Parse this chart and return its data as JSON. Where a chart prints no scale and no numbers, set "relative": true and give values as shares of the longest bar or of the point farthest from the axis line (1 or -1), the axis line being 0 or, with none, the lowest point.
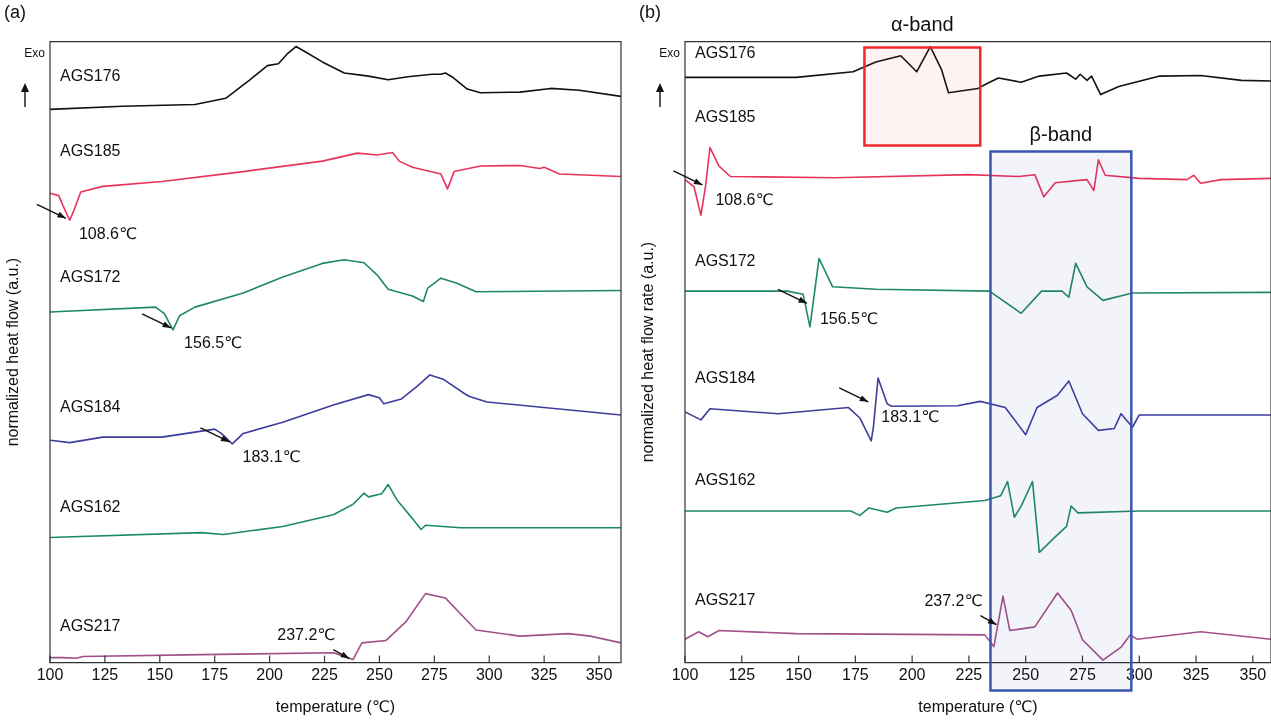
{
  "chart_data": [
    {
      "type": "line",
      "title": "(a)",
      "xlabel": "temperature (℃)",
      "ylabel": "normalized heat flow (a.u.)",
      "relative": true,
      "grid": false,
      "legend": false,
      "marker": "none",
      "xlim": [
        100,
        360
      ],
      "xticks": [
        100,
        125,
        150,
        175,
        200,
        225,
        250,
        275,
        300,
        325,
        350
      ],
      "series": [
        {
          "name": "AGS176",
          "color": "#111111",
          "x": [
            100,
            133,
            166,
            180,
            191,
            199,
            204,
            208,
            212,
            216,
            224,
            234,
            245,
            254,
            263,
            274,
            278,
            280,
            283,
            290,
            296,
            314,
            328,
            341,
            360
          ],
          "values": [
            0.898,
            0.903,
            0.906,
            0.916,
            0.946,
            0.969,
            0.972,
            0.988,
            1.0,
            0.992,
            0.975,
            0.957,
            0.952,
            0.946,
            0.951,
            0.955,
            0.955,
            0.957,
            0.951,
            0.931,
            0.925,
            0.926,
            0.932,
            0.929,
            0.919
          ]
        },
        {
          "name": "AGS185",
          "color": "#e8335a",
          "x": [
            100,
            104,
            106,
            109,
            111,
            114,
            124,
            151,
            188,
            224,
            240,
            249,
            256,
            259,
            265,
            278,
            281,
            284,
            296,
            314,
            323,
            325,
            332,
            360
          ],
          "values": [
            0.762,
            0.758,
            0.741,
            0.718,
            0.735,
            0.764,
            0.773,
            0.781,
            0.797,
            0.814,
            0.827,
            0.824,
            0.828,
            0.814,
            0.804,
            0.793,
            0.769,
            0.797,
            0.806,
            0.807,
            0.802,
            0.804,
            0.793,
            0.789
          ]
        },
        {
          "name": "AGS172",
          "color": "#1f8a5e",
          "x": [
            100,
            148,
            152,
            156,
            159,
            166,
            188,
            206,
            224,
            234,
            243,
            249,
            254,
            265,
            270,
            272,
            278,
            285,
            294,
            360
          ],
          "values": [
            0.569,
            0.577,
            0.567,
            0.54,
            0.563,
            0.577,
            0.6,
            0.626,
            0.648,
            0.654,
            0.649,
            0.629,
            0.606,
            0.595,
            0.586,
            0.608,
            0.624,
            0.616,
            0.602,
            0.604
          ]
        },
        {
          "name": "AGS184",
          "color": "#3d3d9e",
          "x": [
            100,
            109,
            124,
            151,
            175,
            178,
            183,
            188,
            206,
            229,
            245,
            250,
            252,
            260,
            267,
            273,
            279,
            289,
            291,
            299,
            360
          ],
          "values": [
            0.361,
            0.357,
            0.366,
            0.366,
            0.379,
            0.372,
            0.355,
            0.372,
            0.39,
            0.418,
            0.435,
            0.43,
            0.42,
            0.428,
            0.448,
            0.467,
            0.46,
            0.436,
            0.432,
            0.423,
            0.402
          ]
        },
        {
          "name": "AGS162",
          "color": "#1c8a6a",
          "x": [
            100,
            169,
            179,
            206,
            229,
            238,
            243,
            245,
            251,
            254,
            258,
            265,
            269,
            271,
            287,
            360
          ],
          "values": [
            0.203,
            0.211,
            0.208,
            0.221,
            0.24,
            0.257,
            0.275,
            0.269,
            0.274,
            0.289,
            0.264,
            0.234,
            0.216,
            0.223,
            0.219,
            0.219
          ]
        },
        {
          "name": "AGS217",
          "color": "#a0508a",
          "x": [
            100,
            106,
            112,
            115,
            169,
            229,
            238,
            242,
            253,
            262,
            271,
            280,
            287,
            294,
            314,
            336,
            346,
            360
          ],
          "values": [
            0.008,
            0.008,
            0.007,
            0.01,
            0.013,
            0.016,
            0.005,
            0.032,
            0.036,
            0.066,
            0.112,
            0.105,
            0.079,
            0.053,
            0.043,
            0.047,
            0.043,
            0.032
          ]
        }
      ],
      "annotations": [
        "Exo",
        {
          "text": "108.6℃",
          "x": 108.6,
          "y": 0.718
        },
        {
          "text": "156.5℃",
          "x": 156.5,
          "y": 0.54
        },
        {
          "text": "183.1℃",
          "x": 183.1,
          "y": 0.355
        },
        {
          "text": "237.2℃",
          "x": 237.2,
          "y": 0.005
        }
      ]
    },
    {
      "type": "line",
      "title": "(b)",
      "xlabel": "temperature (℃)",
      "ylabel": "normalized heat flow rate (a.u.)",
      "relative": true,
      "grid": false,
      "legend": false,
      "marker": "none",
      "xlim": [
        100,
        358
      ],
      "xticks": [
        100,
        125,
        150,
        175,
        200,
        225,
        250,
        275,
        300,
        325,
        350
      ],
      "series": [
        {
          "name": "AGS176",
          "color": "#111111",
          "x": [
            100,
            124,
            149,
            174,
            184,
            195,
            202,
            208,
            213,
            216,
            229,
            233,
            238,
            248,
            256,
            268,
            272,
            274,
            277,
            279,
            283,
            291,
            309,
            327,
            345,
            358
          ],
          "values": [
            0.95,
            0.95,
            0.95,
            0.959,
            0.975,
            0.985,
            0.959,
            1.0,
            0.962,
            0.925,
            0.932,
            0.94,
            0.949,
            0.942,
            0.952,
            0.957,
            0.947,
            0.955,
            0.945,
            0.952,
            0.922,
            0.935,
            0.952,
            0.953,
            0.945,
            0.944
          ]
        },
        {
          "name": "AGS185",
          "color": "#e8335a",
          "x": [
            100,
            104,
            107,
            109,
            111,
            115,
            120,
            166,
            225,
            247,
            254,
            258,
            263,
            277,
            280,
            282,
            285,
            300,
            321,
            324,
            327,
            336,
            358
          ],
          "values": [
            0.784,
            0.772,
            0.726,
            0.772,
            0.836,
            0.806,
            0.789,
            0.787,
            0.792,
            0.789,
            0.792,
            0.756,
            0.779,
            0.784,
            0.766,
            0.816,
            0.791,
            0.786,
            0.784,
            0.791,
            0.778,
            0.784,
            0.786
          ]
        },
        {
          "name": "AGS172",
          "color": "#1f8a5e",
          "x": [
            100,
            145,
            152,
            155,
            157,
            159,
            165,
            184,
            234,
            248,
            257,
            266,
            269,
            272,
            277,
            284,
            297,
            358
          ],
          "values": [
            0.603,
            0.603,
            0.598,
            0.545,
            0.6,
            0.656,
            0.61,
            0.606,
            0.603,
            0.567,
            0.603,
            0.603,
            0.593,
            0.648,
            0.61,
            0.588,
            0.6,
            0.601
          ]
        },
        {
          "name": "AGS184",
          "color": "#3d3d9e",
          "x": [
            100,
            107,
            111,
            141,
            172,
            177,
            182,
            183,
            185,
            189,
            191,
            220,
            230,
            241,
            250,
            255,
            264,
            269,
            275,
            282,
            289,
            292,
            297,
            300,
            358
          ],
          "values": [
            0.407,
            0.394,
            0.412,
            0.404,
            0.414,
            0.397,
            0.36,
            0.384,
            0.462,
            0.42,
            0.416,
            0.417,
            0.424,
            0.414,
            0.37,
            0.414,
            0.434,
            0.457,
            0.404,
            0.377,
            0.38,
            0.404,
            0.382,
            0.402,
            0.402
          ]
        },
        {
          "name": "AGS162",
          "color": "#1c8a6a",
          "x": [
            100,
            173,
            177,
            181,
            189,
            193,
            232,
            239,
            242,
            245,
            248,
            253,
            256,
            263,
            268,
            270,
            273,
            300,
            358
          ],
          "values": [
            0.246,
            0.246,
            0.239,
            0.251,
            0.244,
            0.251,
            0.263,
            0.271,
            0.294,
            0.236,
            0.254,
            0.294,
            0.179,
            0.204,
            0.221,
            0.254,
            0.243,
            0.246,
            0.246
          ]
        },
        {
          "name": "AGS217",
          "color": "#a0508a",
          "x": [
            100,
            106,
            110,
            115,
            149,
            232,
            236,
            240,
            243,
            254,
            264,
            270,
            275,
            284,
            292,
            296,
            299,
            327,
            358
          ],
          "values": [
            0.038,
            0.05,
            0.042,
            0.052,
            0.047,
            0.045,
            0.026,
            0.108,
            0.052,
            0.058,
            0.113,
            0.085,
            0.037,
            0.004,
            0.025,
            0.045,
            0.038,
            0.05,
            0.038
          ]
        }
      ],
      "bands": [
        {
          "axis": "x",
          "from": 179,
          "to": 230,
          "label": "α-band",
          "color": "#ee2a2a"
        },
        {
          "axis": "x",
          "from": 234.5,
          "to": 296.5,
          "label": "β-band",
          "color": "#3a55b0"
        }
      ],
      "annotations": [
        "Exo",
        {
          "text": "108.6℃",
          "x": 109,
          "y": 0.772
        },
        {
          "text": "156.5℃",
          "x": 155,
          "y": 0.58
        },
        {
          "text": "183.1℃",
          "x": 182,
          "y": 0.42
        },
        {
          "text": "237.2℃",
          "x": 238,
          "y": 0.06
        }
      ]
    }
  ]
}
